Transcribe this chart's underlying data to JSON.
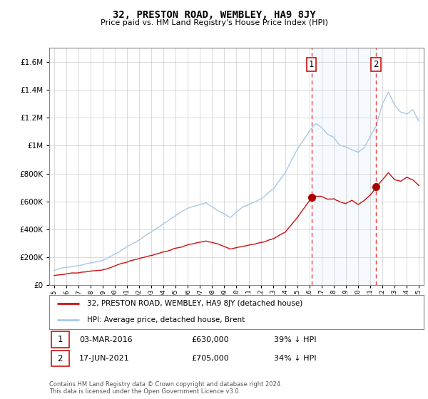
{
  "title": "32, PRESTON ROAD, WEMBLEY, HA9 8JY",
  "subtitle": "Price paid vs. HM Land Registry's House Price Index (HPI)",
  "legend_line1": "32, PRESTON ROAD, WEMBLEY, HA9 8JY (detached house)",
  "legend_line2": "HPI: Average price, detached house, Brent",
  "annotation1_date": "03-MAR-2016",
  "annotation1_price": "£630,000",
  "annotation1_hpi": "39% ↓ HPI",
  "annotation2_date": "17-JUN-2021",
  "annotation2_price": "£705,000",
  "annotation2_hpi": "34% ↓ HPI",
  "footer": "Contains HM Land Registry data © Crown copyright and database right 2024.\nThis data is licensed under the Open Government Licence v3.0.",
  "hpi_color": "#a8c8e8",
  "price_color": "#cc1111",
  "vline_color": "#ee4444",
  "dot_color": "#aa0000",
  "shade_color": "#ddeeff",
  "ylim": [
    0,
    1700000
  ],
  "yticks": [
    0,
    200000,
    400000,
    600000,
    800000,
    1000000,
    1200000,
    1400000,
    1600000
  ],
  "sale1_year": 2016.17,
  "sale2_year": 2021.46,
  "sale1_price": 630000,
  "sale2_price": 705000
}
